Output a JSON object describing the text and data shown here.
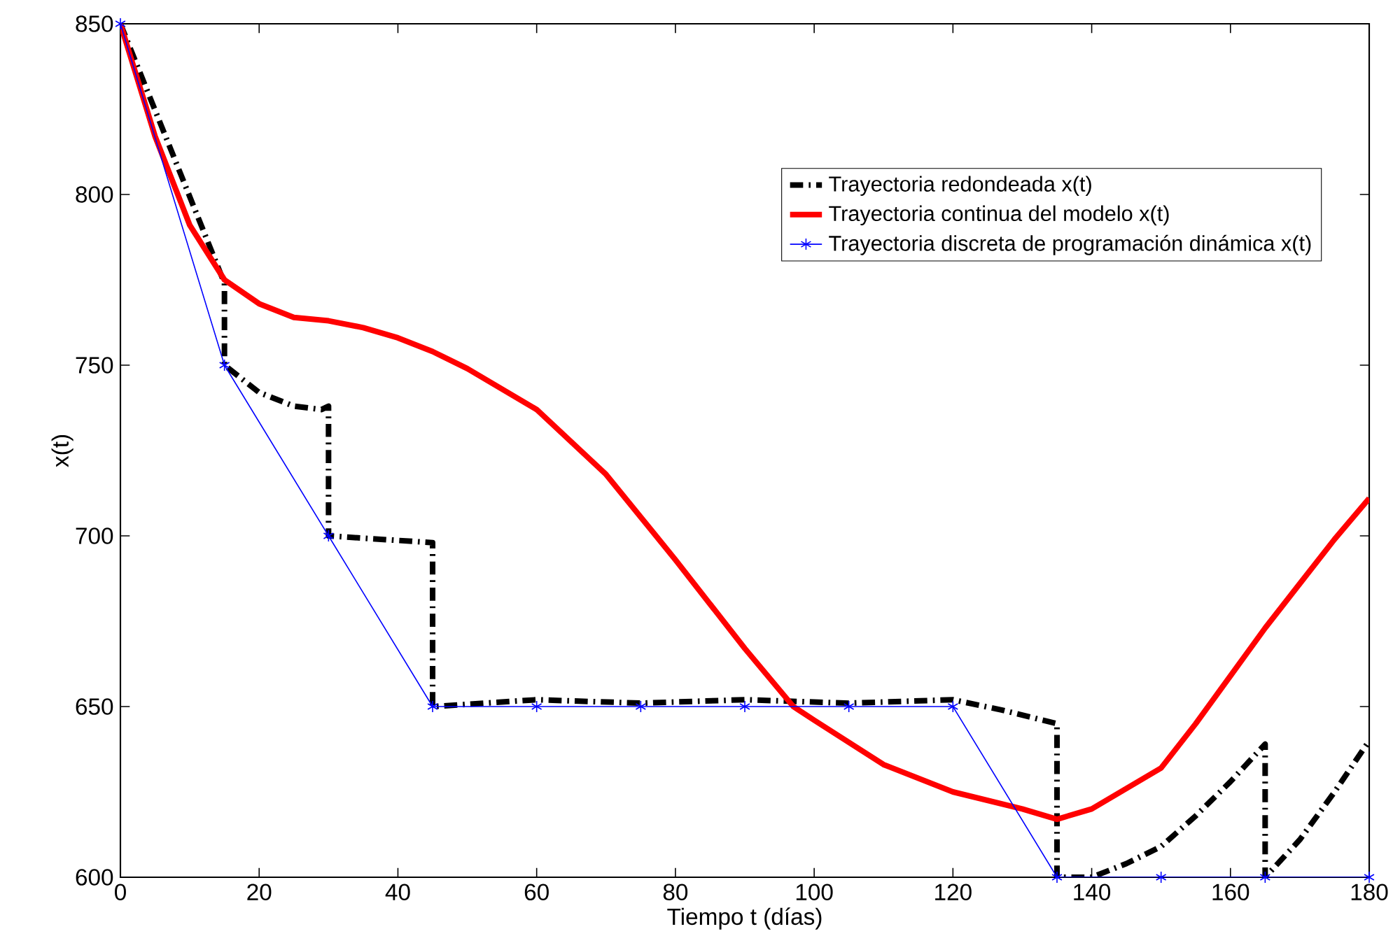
{
  "chart_data": {
    "type": "line",
    "xlabel": "Tiempo t (días)",
    "ylabel": "x(t)",
    "xlim": [
      0,
      180
    ],
    "ylim": [
      600,
      850
    ],
    "xticks": [
      0,
      20,
      40,
      60,
      80,
      100,
      120,
      140,
      160,
      180
    ],
    "yticks": [
      600,
      650,
      700,
      750,
      800,
      850
    ],
    "grid": false,
    "legend": "top right",
    "series": [
      {
        "name": "Trayectoria redondeada x(t)",
        "color": "#000000",
        "line_style": "dashdot",
        "marker": "none",
        "x": [
          0,
          5,
          10,
          15,
          15,
          20,
          25,
          29,
          30,
          30,
          45,
          45,
          60,
          75,
          90,
          105,
          120,
          127,
          135,
          135,
          140,
          145,
          150,
          155,
          160,
          165,
          165,
          170,
          175,
          180
        ],
        "values": [
          850,
          null,
          null,
          774,
          750,
          742,
          738,
          737,
          738,
          700,
          698,
          650,
          652,
          651,
          652,
          651,
          652,
          649,
          645,
          600,
          600,
          604,
          609,
          618,
          628,
          639,
          600,
          611,
          625,
          640
        ]
      },
      {
        "name": "Trayectoria continua del modelo x(t)",
        "color": "#ff0000",
        "line_style": "solid",
        "marker": "none",
        "x": [
          0,
          5,
          10,
          15,
          20,
          25,
          30,
          35,
          40,
          45,
          50,
          60,
          70,
          80,
          90,
          97,
          100,
          110,
          120,
          130,
          135,
          140,
          145,
          150,
          155,
          160,
          165,
          170,
          175,
          180
        ],
        "values": [
          850,
          817,
          791,
          775,
          768,
          764,
          763,
          761,
          758,
          754,
          749,
          737,
          718,
          693,
          667,
          650,
          646,
          633,
          625,
          620,
          617,
          620,
          626,
          632,
          645,
          659,
          673,
          686,
          699,
          711
        ]
      },
      {
        "name": "Trayectoria discreta de programación dinámica x(t)",
        "color": "#0000ff",
        "line_style": "solid",
        "marker": "cross",
        "x": [
          0,
          15,
          30,
          45,
          60,
          75,
          90,
          105,
          120,
          135,
          150,
          165,
          180
        ],
        "values": [
          850,
          750,
          700,
          650,
          650,
          650,
          650,
          650,
          650,
          600,
          600,
          600,
          600
        ]
      }
    ]
  }
}
